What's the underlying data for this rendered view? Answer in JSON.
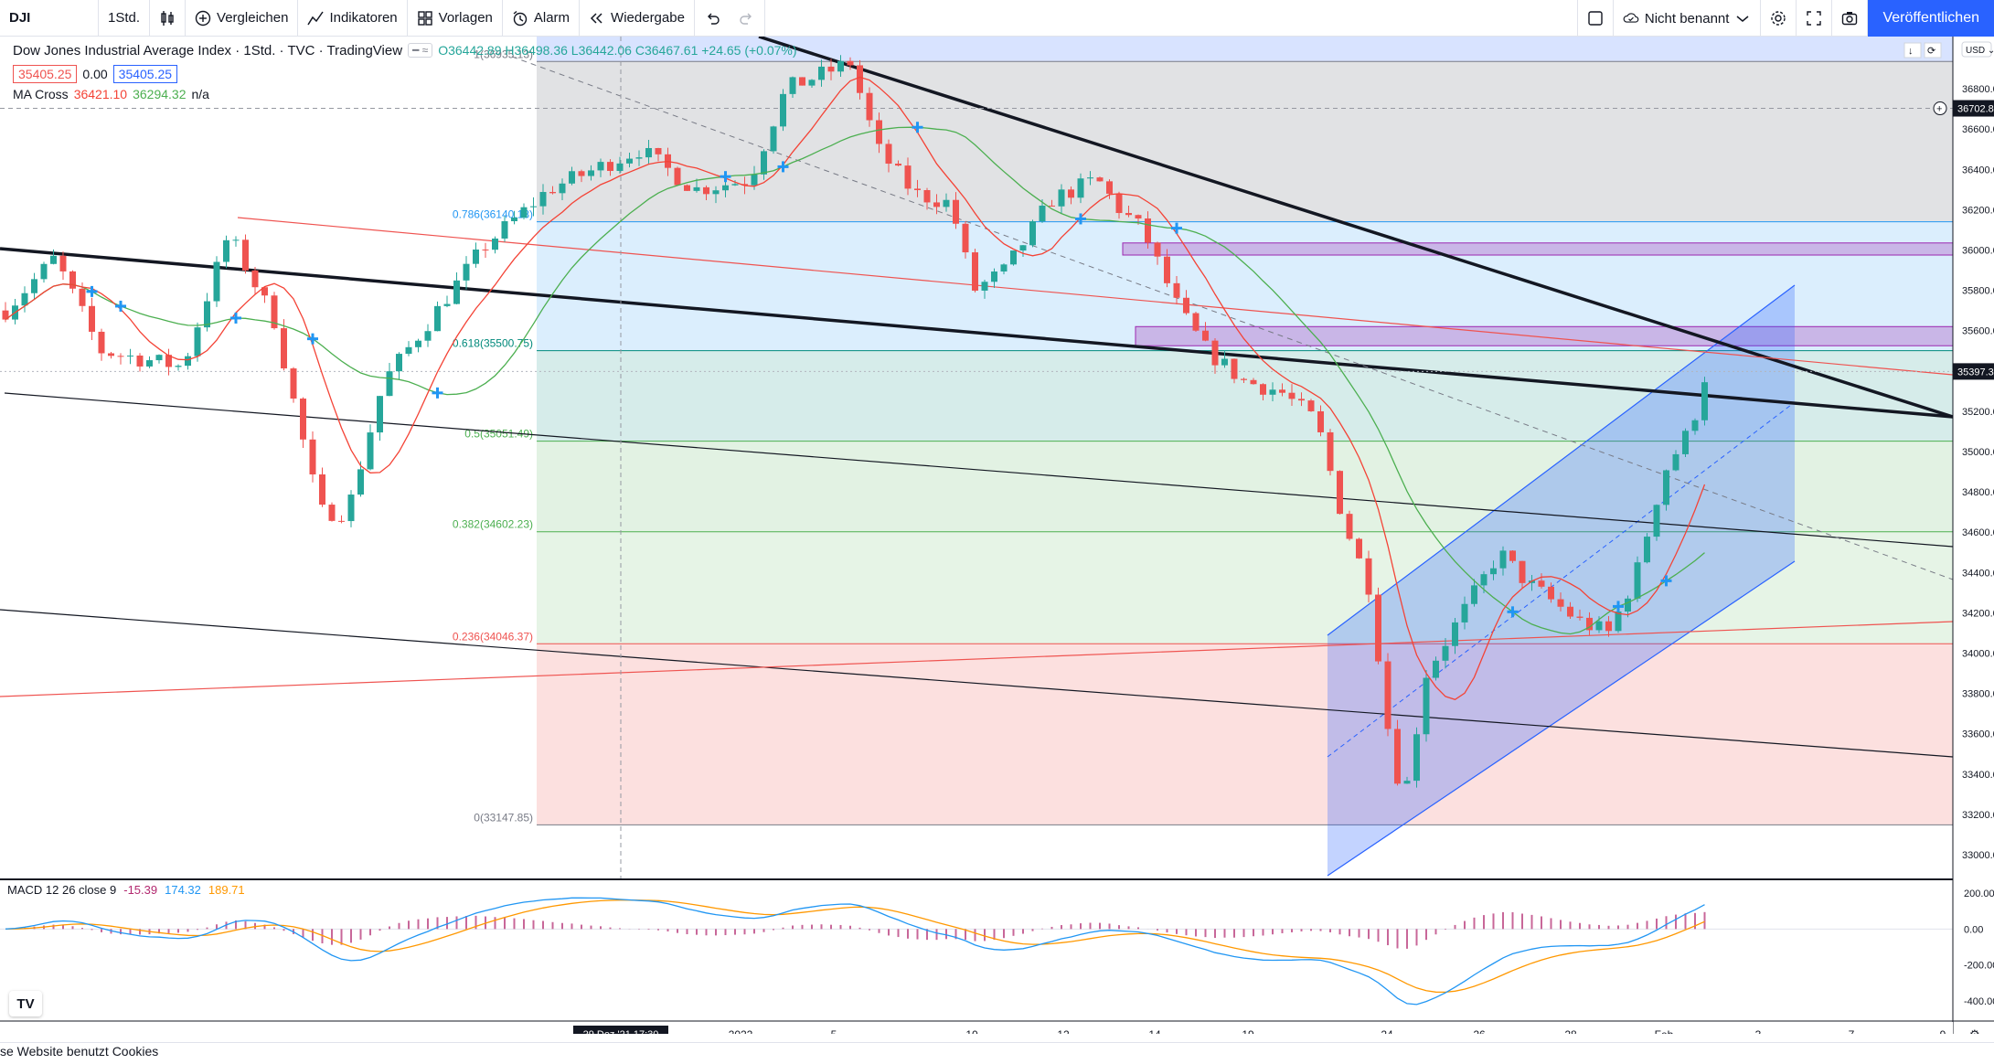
{
  "toolbar": {
    "symbol": "DJI",
    "interval": "1Std.",
    "compare": "Vergleichen",
    "indicators": "Indikatoren",
    "templates": "Vorlagen",
    "alert": "Alarm",
    "replay": "Wiedergabe",
    "unnamed": "Nicht benannt",
    "publish": "Veröffentlichen"
  },
  "legend": {
    "title": "Dow Jones Industrial Average Index · 1Std. · TVC · TradingView",
    "ohlc": "O36442.89 H36498.36 L36442.06 C36467.61 +24.65 (+0.07%)",
    "sell": "35405.25",
    "spread": "0.00",
    "buy": "35405.25",
    "ma_name": "MA Cross",
    "ma_fast": "36421.10",
    "ma_slow": "36294.32",
    "ma_na": "n/a",
    "macd_name": "MACD 12 26 close 9",
    "macd_hist": "-15.39",
    "macd_line": "174.32",
    "macd_signal": "189.71"
  },
  "price_scale": {
    "currency": "USD",
    "ticks": [
      "36800.00",
      "36600.00",
      "36400.00",
      "36200.00",
      "36000.00",
      "35800.00",
      "35600.00",
      "35400.00",
      "35200.00",
      "35000.00",
      "34800.00",
      "34600.00",
      "34400.00",
      "34200.00",
      "34000.00",
      "33800.00",
      "33600.00",
      "33400.00",
      "33200.00",
      "33000.00"
    ],
    "crosshair_label": "36702.87",
    "last_price": "35397.38",
    "macd_ticks": [
      "200.00",
      "0.00",
      "-200.00",
      "-400.00"
    ]
  },
  "time_axis": {
    "labels": [
      "2022",
      "5",
      "10",
      "12",
      "14",
      "19",
      "24",
      "26",
      "28",
      "Feb",
      "3",
      "7",
      "9"
    ],
    "crosshair_label": "29 Dez '21   17:30"
  },
  "fib_levels": [
    {
      "label": "1(36935.13)"
    },
    {
      "label": "0.786(36140.18)"
    },
    {
      "label": "0.618(35500.75)"
    },
    {
      "label": "0.5(35051.49)"
    },
    {
      "label": "0.382(34602.23)"
    },
    {
      "label": "0.236(34046.37)"
    },
    {
      "label": "0(33147.85)"
    }
  ],
  "cookie_text": "se Website benutzt Cookies",
  "logo_text": "TV",
  "colors": {
    "up": "#26a69a",
    "down": "#ef5350",
    "ma_fast": "#f44336",
    "ma_slow": "#4caf50",
    "macd": "#2196f3",
    "signal": "#ff9800",
    "hist": "#b2286f",
    "accent": "#2962ff"
  },
  "chart_data": {
    "type": "candlestick",
    "symbol": "DJI",
    "interval": "1h",
    "ylim": [
      32900,
      37050
    ],
    "fib_retracement": [
      36935.13,
      36140.18,
      35500.75,
      35051.49,
      34602.23,
      34046.37,
      33147.85
    ],
    "last_close": 35397.38,
    "key_swings": [
      {
        "date": "2021-12-20",
        "price": 34700
      },
      {
        "date": "2022-01-05",
        "price": 36935
      },
      {
        "date": "2022-01-24",
        "price": 33148
      },
      {
        "date": "2022-02-02",
        "price": 35397
      }
    ],
    "macd": {
      "hist": -15.39,
      "macd": 174.32,
      "signal": 189.71,
      "ylim": [
        -450,
        240
      ]
    }
  }
}
